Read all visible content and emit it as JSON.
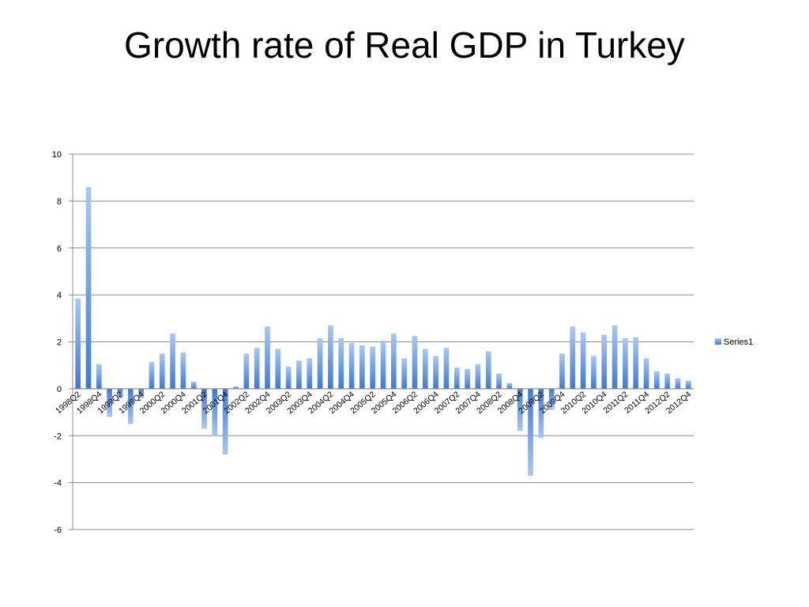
{
  "slide": {
    "title": "Growth rate of Real GDP in Turkey"
  },
  "chart_data": {
    "type": "bar",
    "title": "",
    "xlabel": "",
    "ylabel": "",
    "ylim": [
      -6,
      10
    ],
    "yticks": [
      10,
      8,
      6,
      4,
      2,
      0,
      -2,
      -4,
      -6
    ],
    "grid": true,
    "legend": "right",
    "bar_color": "#4a86d8",
    "categories": [
      "1998Q2",
      "1998Q3",
      "1998Q4",
      "1999Q1",
      "1999Q2",
      "1999Q3",
      "1999Q4",
      "2000Q1",
      "2000Q2",
      "2000Q3",
      "2000Q4",
      "2001Q1",
      "2001Q2",
      "2001Q3",
      "2001Q4",
      "2002Q1",
      "2002Q2",
      "2002Q3",
      "2002Q4",
      "2003Q1",
      "2003Q2",
      "2003Q3",
      "2003Q4",
      "2004Q1",
      "2004Q2",
      "2004Q3",
      "2004Q4",
      "2005Q1",
      "2005Q2",
      "2005Q3",
      "2005Q4",
      "2006Q1",
      "2006Q2",
      "2006Q3",
      "2006Q4",
      "2007Q1",
      "2007Q2",
      "2007Q3",
      "2007Q4",
      "2008Q1",
      "2008Q2",
      "2008Q3",
      "2008Q4",
      "2009Q1",
      "2009Q2",
      "2009Q3",
      "2009Q4",
      "2010Q1",
      "2010Q2",
      "2010Q3",
      "2010Q4",
      "2011Q1",
      "2011Q2",
      "2011Q3",
      "2011Q4",
      "2012Q1",
      "2012Q2",
      "2012Q3",
      "2012Q4"
    ],
    "tick_labels": [
      "1998Q2",
      "1998Q4",
      "1999Q2",
      "1999Q4",
      "2000Q2",
      "2000Q4",
      "2001Q2",
      "2001Q4",
      "2002Q2",
      "2002Q4",
      "2003Q2",
      "2003Q4",
      "2004Q2",
      "2004Q4",
      "2005Q2",
      "2005Q4",
      "2006Q2",
      "2006Q4",
      "2007Q2",
      "2007Q4",
      "2008Q2",
      "2008Q4",
      "2009Q2",
      "2009Q4",
      "2010Q2",
      "2010Q4",
      "2011Q2",
      "2011Q4",
      "2012Q2",
      "2012Q4"
    ],
    "series": [
      {
        "name": "Series1",
        "values": [
          3.85,
          8.6,
          1.05,
          -1.2,
          -0.4,
          -1.5,
          -0.4,
          1.15,
          1.5,
          2.35,
          1.55,
          0.3,
          -1.7,
          -2.0,
          -2.8,
          0.1,
          1.5,
          1.75,
          2.65,
          1.7,
          0.95,
          1.2,
          1.3,
          2.15,
          2.7,
          2.15,
          1.95,
          1.85,
          1.8,
          2.05,
          2.35,
          1.3,
          2.25,
          1.7,
          1.4,
          1.75,
          0.9,
          0.85,
          1.05,
          1.6,
          0.65,
          0.25,
          -1.8,
          -3.7,
          -2.1,
          -0.9,
          1.5,
          2.65,
          2.4,
          1.4,
          2.3,
          2.7,
          2.15,
          2.2,
          1.3,
          0.75,
          0.65,
          0.45,
          0.35
        ]
      }
    ]
  }
}
